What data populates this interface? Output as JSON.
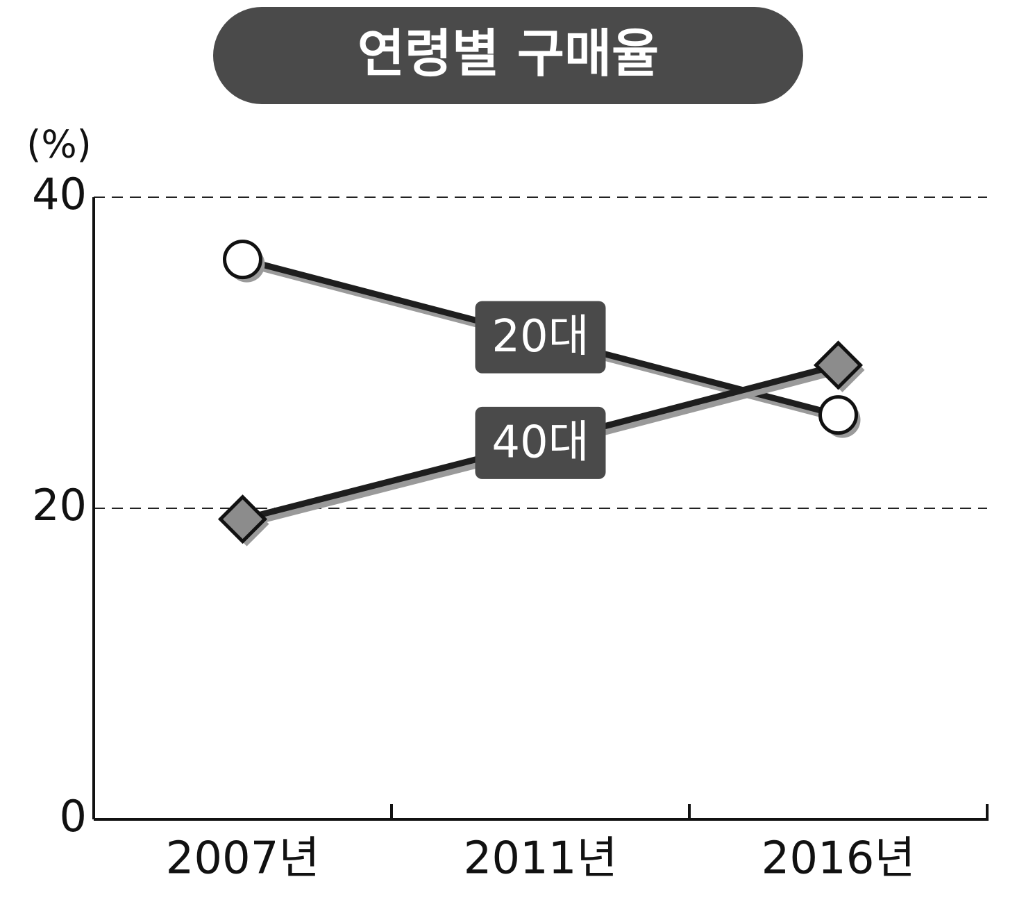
{
  "chart_data": {
    "type": "line",
    "title": "연령별 구매율",
    "y_unit_label": "(%)",
    "categories": [
      "2007년",
      "2011년",
      "2016년"
    ],
    "series": [
      {
        "name": "20대",
        "color": "#1e1e1e",
        "marker": "circle",
        "marker_fill": "#ffffff",
        "values": [
          36,
          31,
          26
        ]
      },
      {
        "name": "40대",
        "color": "#1e1e1e",
        "marker": "diamond",
        "marker_fill": "#8c8c8c",
        "values": [
          19.3,
          24.2,
          29.2
        ]
      }
    ],
    "ylim": [
      0,
      40
    ],
    "yticks": [
      0,
      20,
      40
    ],
    "grid": true
  }
}
